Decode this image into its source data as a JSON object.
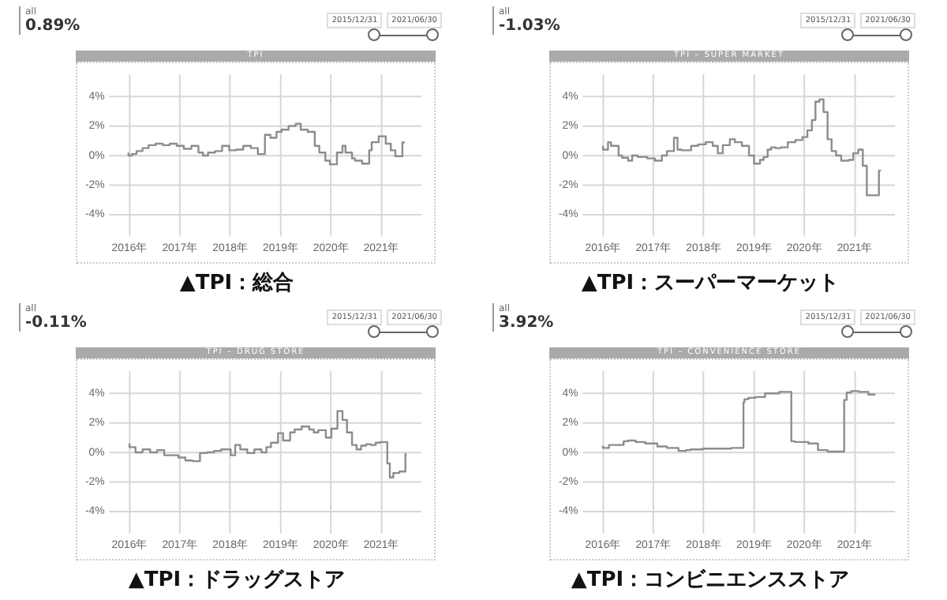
{
  "chart_data": [
    {
      "type": "step",
      "title": "TPI",
      "annotations": [
        "all",
        "0.89%",
        "2015/12/31",
        "2021/06/30",
        "▲TPI：総合"
      ],
      "grid": true,
      "marker": "none",
      "line_style": "solid",
      "xlim": [
        2015.6,
        2021.8
      ],
      "ylim": [
        -5.5,
        5.5
      ],
      "xticks": [
        {
          "value": 2016,
          "label": "2016年"
        },
        {
          "value": 2017,
          "label": "2017年"
        },
        {
          "value": 2018,
          "label": "2018年"
        },
        {
          "value": 2019,
          "label": "2019年"
        },
        {
          "value": 2020,
          "label": "2020年"
        },
        {
          "value": 2021,
          "label": "2021年"
        }
      ],
      "yticks": [
        {
          "value": -4,
          "label": "-4%"
        },
        {
          "value": -2,
          "label": "-2%"
        },
        {
          "value": 0,
          "label": "0%"
        },
        {
          "value": 2,
          "label": "2%"
        },
        {
          "value": 4,
          "label": "4%"
        }
      ],
      "series": [
        {
          "color": "#8c8c8c",
          "x": [
            2015.98,
            2016.05,
            2016.14,
            2016.26,
            2016.38,
            2016.52,
            2016.66,
            2016.8,
            2016.94,
            2017.08,
            2017.23,
            2017.37,
            2017.46,
            2017.56,
            2017.7,
            2017.84,
            2017.98,
            2018.12,
            2018.26,
            2018.41,
            2018.55,
            2018.69,
            2018.8,
            2018.92,
            2019.02,
            2019.16,
            2019.3,
            2019.4,
            2019.54,
            2019.68,
            2019.77,
            2019.89,
            2019.98,
            2020.12,
            2020.23,
            2020.29,
            2020.42,
            2020.48,
            2020.62,
            2020.76,
            2020.81,
            2020.95,
            2021.09,
            2021.19,
            2021.28,
            2021.36,
            2021.42,
            2021.47
          ],
          "values": [
            0.2,
            0,
            0.1,
            0.3,
            0.5,
            0.7,
            0.8,
            0.7,
            0.8,
            0.65,
            0.45,
            0.65,
            0.2,
            0,
            0.2,
            0.3,
            0.65,
            0.35,
            0.4,
            0.65,
            0.5,
            0.1,
            1.4,
            1.2,
            1.6,
            1.75,
            2.0,
            2.15,
            1.75,
            1.6,
            0.65,
            0.2,
            -0.35,
            -0.6,
            0.2,
            0.65,
            0.2,
            -0.2,
            -0.35,
            -0.55,
            0.35,
            0.9,
            1.3,
            0.8,
            0.35,
            -0.05,
            -0.05,
            0.89
          ]
        }
      ]
    },
    {
      "type": "step",
      "title": "TPI – SUPER MARKET",
      "annotations": [
        "all",
        "-1.03%",
        "2015/12/31",
        "2021/06/30",
        "▲TPI：スーパーマーケット"
      ],
      "grid": true,
      "marker": "none",
      "line_style": "solid",
      "xlim": [
        2015.6,
        2021.8
      ],
      "ylim": [
        -5.5,
        5.5
      ],
      "xticks": [
        {
          "value": 2016,
          "label": "2016年"
        },
        {
          "value": 2017,
          "label": "2017年"
        },
        {
          "value": 2018,
          "label": "2018年"
        },
        {
          "value": 2019,
          "label": "2019年"
        },
        {
          "value": 2020,
          "label": "2020年"
        },
        {
          "value": 2021,
          "label": "2021年"
        }
      ],
      "yticks": [
        {
          "value": -4,
          "label": "-4%"
        },
        {
          "value": -2,
          "label": "-2%"
        },
        {
          "value": 0,
          "label": "0%"
        },
        {
          "value": 2,
          "label": "2%"
        },
        {
          "value": 4,
          "label": "4%"
        }
      ],
      "series": [
        {
          "color": "#8c8c8c",
          "x": [
            2016.0,
            2016.1,
            2016.16,
            2016.31,
            2016.38,
            2016.5,
            2016.58,
            2016.69,
            2016.88,
            2017.03,
            2017.17,
            2017.27,
            2017.41,
            2017.48,
            2017.56,
            2017.75,
            2017.89,
            2018.04,
            2018.18,
            2018.28,
            2018.38,
            2018.52,
            2018.62,
            2018.76,
            2018.9,
            2019.0,
            2019.12,
            2019.19,
            2019.27,
            2019.34,
            2019.43,
            2019.53,
            2019.67,
            2019.82,
            2019.96,
            2020.06,
            2020.15,
            2020.22,
            2020.3,
            2020.38,
            2020.46,
            2020.54,
            2020.63,
            2020.73,
            2020.88,
            2020.97,
            2021.07,
            2021.16,
            2021.24,
            2021.33,
            2021.48,
            2021.52
          ],
          "values": [
            0.65,
            0.4,
            0.9,
            0.65,
            0,
            -0.15,
            -0.35,
            0,
            -0.1,
            -0.2,
            -0.35,
            0,
            0.3,
            1.2,
            0.4,
            0.35,
            0.65,
            0.75,
            0.9,
            0.65,
            0.15,
            0.7,
            1.1,
            0.9,
            0.65,
            0,
            -0.55,
            -0.3,
            -0.1,
            0.4,
            0.55,
            0.5,
            0.55,
            0.9,
            1.05,
            1.25,
            1.7,
            2.4,
            3.65,
            3.8,
            2.95,
            1.1,
            0.3,
            0,
            -0.35,
            -0.3,
            0.15,
            0.4,
            -0.7,
            -2.7,
            -2.7,
            -1.03
          ]
        }
      ]
    },
    {
      "type": "step",
      "title": "TPI – DRUG STORE",
      "annotations": [
        "all",
        "-0.11%",
        "2015/12/31",
        "2021/06/30",
        "▲TPI：ドラッグストア"
      ],
      "grid": true,
      "marker": "none",
      "line_style": "solid",
      "xlim": [
        2015.6,
        2021.8
      ],
      "ylim": [
        -5.5,
        5.5
      ],
      "xticks": [
        {
          "value": 2016,
          "label": "2016年"
        },
        {
          "value": 2017,
          "label": "2017年"
        },
        {
          "value": 2018,
          "label": "2018年"
        },
        {
          "value": 2019,
          "label": "2019年"
        },
        {
          "value": 2020,
          "label": "2020年"
        },
        {
          "value": 2021,
          "label": "2021年"
        }
      ],
      "yticks": [
        {
          "value": -4,
          "label": "-4%"
        },
        {
          "value": -2,
          "label": "-2%"
        },
        {
          "value": 0,
          "label": "0%"
        },
        {
          "value": 2,
          "label": "2%"
        },
        {
          "value": 4,
          "label": "4%"
        }
      ],
      "series": [
        {
          "color": "#8c8c8c",
          "x": [
            2016.0,
            2016.12,
            2016.26,
            2016.41,
            2016.55,
            2016.69,
            2016.83,
            2016.97,
            2017.11,
            2017.25,
            2017.4,
            2017.54,
            2017.68,
            2017.82,
            2018.01,
            2018.1,
            2018.2,
            2018.34,
            2018.48,
            2018.62,
            2018.72,
            2018.81,
            2018.95,
            2019.05,
            2019.19,
            2019.28,
            2019.42,
            2019.57,
            2019.66,
            2019.75,
            2019.9,
            2020.01,
            2020.13,
            2020.23,
            2020.32,
            2020.42,
            2020.51,
            2020.6,
            2020.7,
            2020.79,
            2020.89,
            2020.98,
            2021.12,
            2021.17,
            2021.24,
            2021.36,
            2021.48,
            2021.5
          ],
          "values": [
            0.6,
            0.35,
            0,
            0.2,
            0,
            0.15,
            -0.2,
            -0.2,
            -0.35,
            -0.55,
            -0.6,
            -0.05,
            0,
            0.1,
            0.2,
            -0.2,
            0.5,
            0.2,
            -0.05,
            0.2,
            0,
            0.35,
            0.65,
            1.3,
            0.8,
            1.35,
            1.55,
            1.75,
            1.55,
            1.35,
            1.5,
            1.0,
            1.6,
            2.8,
            2.2,
            1.35,
            0.5,
            0.2,
            0.45,
            0.55,
            0.5,
            0.65,
            0.7,
            -0.75,
            -1.7,
            -1.4,
            -1.3,
            -0.11
          ]
        }
      ]
    },
    {
      "type": "step",
      "title": "TPI – CONVENIENCE STORE",
      "annotations": [
        "all",
        "3.92%",
        "2015/12/31",
        "2021/06/30",
        "▲TPI：コンビニエンスストア"
      ],
      "grid": true,
      "marker": "none",
      "line_style": "solid",
      "xlim": [
        2015.6,
        2021.8
      ],
      "ylim": [
        -5.5,
        5.5
      ],
      "xticks": [
        {
          "value": 2016,
          "label": "2016年"
        },
        {
          "value": 2017,
          "label": "2017年"
        },
        {
          "value": 2018,
          "label": "2018年"
        },
        {
          "value": 2019,
          "label": "2019年"
        },
        {
          "value": 2020,
          "label": "2020年"
        },
        {
          "value": 2021,
          "label": "2021年"
        }
      ],
      "yticks": [
        {
          "value": -4,
          "label": "-4%"
        },
        {
          "value": -2,
          "label": "-2%"
        },
        {
          "value": 0,
          "label": "0%"
        },
        {
          "value": 2,
          "label": "2%"
        },
        {
          "value": 4,
          "label": "4%"
        }
      ],
      "series": [
        {
          "color": "#8c8c8c",
          "x": [
            2016.0,
            2016.12,
            2016.27,
            2016.41,
            2016.5,
            2016.65,
            2016.84,
            2017.08,
            2017.27,
            2017.5,
            2017.65,
            2017.74,
            2017.98,
            2018.27,
            2018.55,
            2018.79,
            2018.81,
            2018.89,
            2019.03,
            2019.22,
            2019.5,
            2019.74,
            2019.81,
            2020.08,
            2020.27,
            2020.46,
            2020.6,
            2020.79,
            2020.84,
            2020.93,
            2021.08,
            2021.27,
            2021.41
          ],
          "values": [
            0.45,
            0.3,
            0.5,
            0.5,
            0.75,
            0.8,
            0.7,
            0.6,
            0.4,
            0.3,
            0.1,
            0.15,
            0.2,
            0.25,
            0.25,
            0.3,
            3.4,
            3.6,
            3.7,
            3.75,
            4.0,
            4.1,
            0.75,
            0.7,
            0.6,
            0.15,
            0.05,
            0.05,
            3.55,
            4.05,
            4.15,
            4.1,
            3.92
          ]
        }
      ]
    }
  ]
}
